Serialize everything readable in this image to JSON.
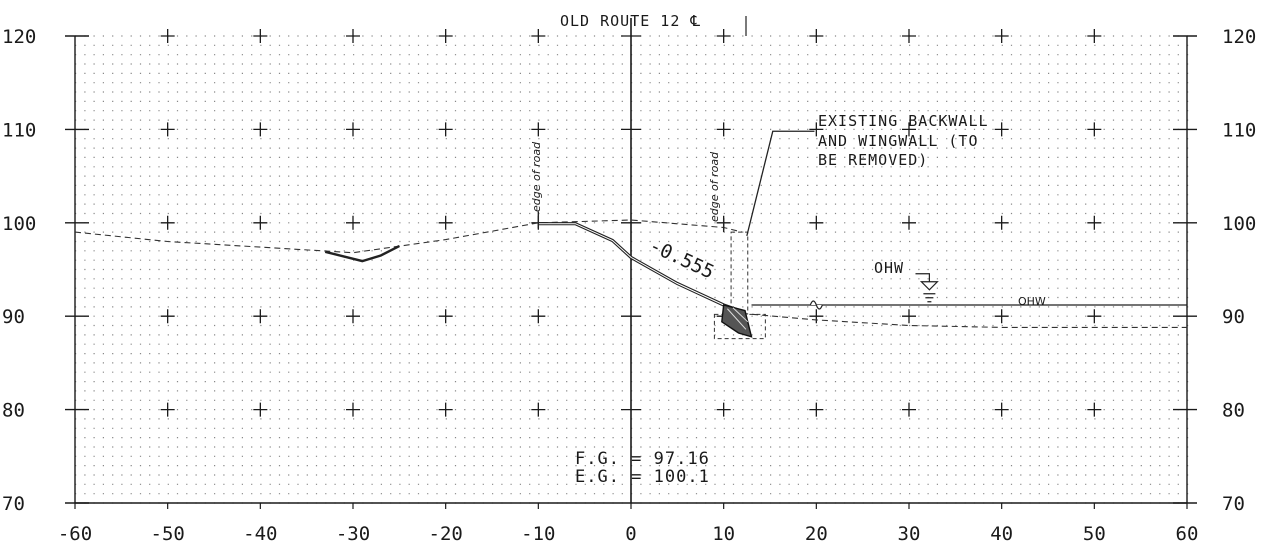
{
  "title": "OLD ROUTE 12 ℄",
  "axes": {
    "x_ticks": [
      "-60",
      "-50",
      "-40",
      "-30",
      "-20",
      "-10",
      "0",
      "10",
      "20",
      "30",
      "40",
      "50",
      "60"
    ],
    "y_ticks_left": [
      "70",
      "80",
      "90",
      "100",
      "110",
      "120"
    ],
    "y_ticks_right": [
      "70",
      "80",
      "90",
      "100",
      "110",
      "120"
    ]
  },
  "labels": {
    "edge_left": "edge of road",
    "edge_right": "edge of road",
    "slope": "-0.555",
    "ohw_flag": "OHW",
    "ohw_line": "OHW",
    "existing_1": "EXISTING BACKWALL",
    "existing_2": "AND WINGWALL (TO",
    "existing_3": "BE REMOVED)",
    "fg": "F.G. = 97.16",
    "eg": "E.G. = 100.1"
  },
  "chart_data": {
    "type": "line",
    "title": "OLD ROUTE 12 ℄",
    "xlabel": "",
    "ylabel": "",
    "xlim": [
      -60,
      60
    ],
    "ylim": [
      70,
      120
    ],
    "grid": true,
    "series": [
      {
        "points": [
          [
            -60,
            99
          ],
          [
            -50,
            98
          ],
          [
            -40,
            97.4
          ],
          [
            -30,
            96.8
          ],
          [
            -20,
            98.2
          ],
          [
            -10,
            100
          ],
          [
            0,
            100.3
          ],
          [
            10,
            99.5
          ],
          [
            12,
            99
          ]
        ]
      },
      {
        "points": [
          [
            -33,
            96.9
          ],
          [
            -29,
            95.9
          ],
          [
            -27,
            96.5
          ],
          [
            -25,
            97.5
          ]
        ]
      },
      {
        "points": [
          [
            -10,
            99.9
          ],
          [
            -6,
            99.9
          ],
          [
            -2,
            98.1
          ],
          [
            0,
            96.3
          ],
          [
            5,
            93.5
          ],
          [
            10,
            91.2
          ],
          [
            12,
            90.5
          ]
        ]
      },
      {
        "points": [
          [
            13,
            91.2
          ],
          [
            20,
            91.2
          ],
          [
            30,
            91.2
          ],
          [
            40,
            91.2
          ],
          [
            50,
            91.2
          ],
          [
            60,
            91.2
          ]
        ]
      },
      {
        "points": [
          [
            12,
            90.3
          ],
          [
            20,
            89.6
          ],
          [
            30,
            89
          ],
          [
            40,
            88.8
          ],
          [
            50,
            88.8
          ],
          [
            60,
            88.8
          ]
        ]
      }
    ],
    "annotations": [
      {
        "text": "edge of road",
        "x": -10,
        "y": 100
      },
      {
        "text": "edge of road",
        "x": 10,
        "y": 99.5
      },
      {
        "text": "-0.555",
        "x": 3,
        "y": 94
      },
      {
        "text": "OHW",
        "x": 30,
        "y": 93
      },
      {
        "text": "OHW",
        "x": 43,
        "y": 91.2
      },
      {
        "text": "EXISTING BACKWALL AND WINGWALL (TO BE REMOVED)",
        "x": 20,
        "y": 110
      },
      {
        "text": "F.G. = 97.16",
        "x": -6,
        "y": 75.5
      },
      {
        "text": "E.G. = 100.1",
        "x": -6,
        "y": 74
      }
    ]
  }
}
